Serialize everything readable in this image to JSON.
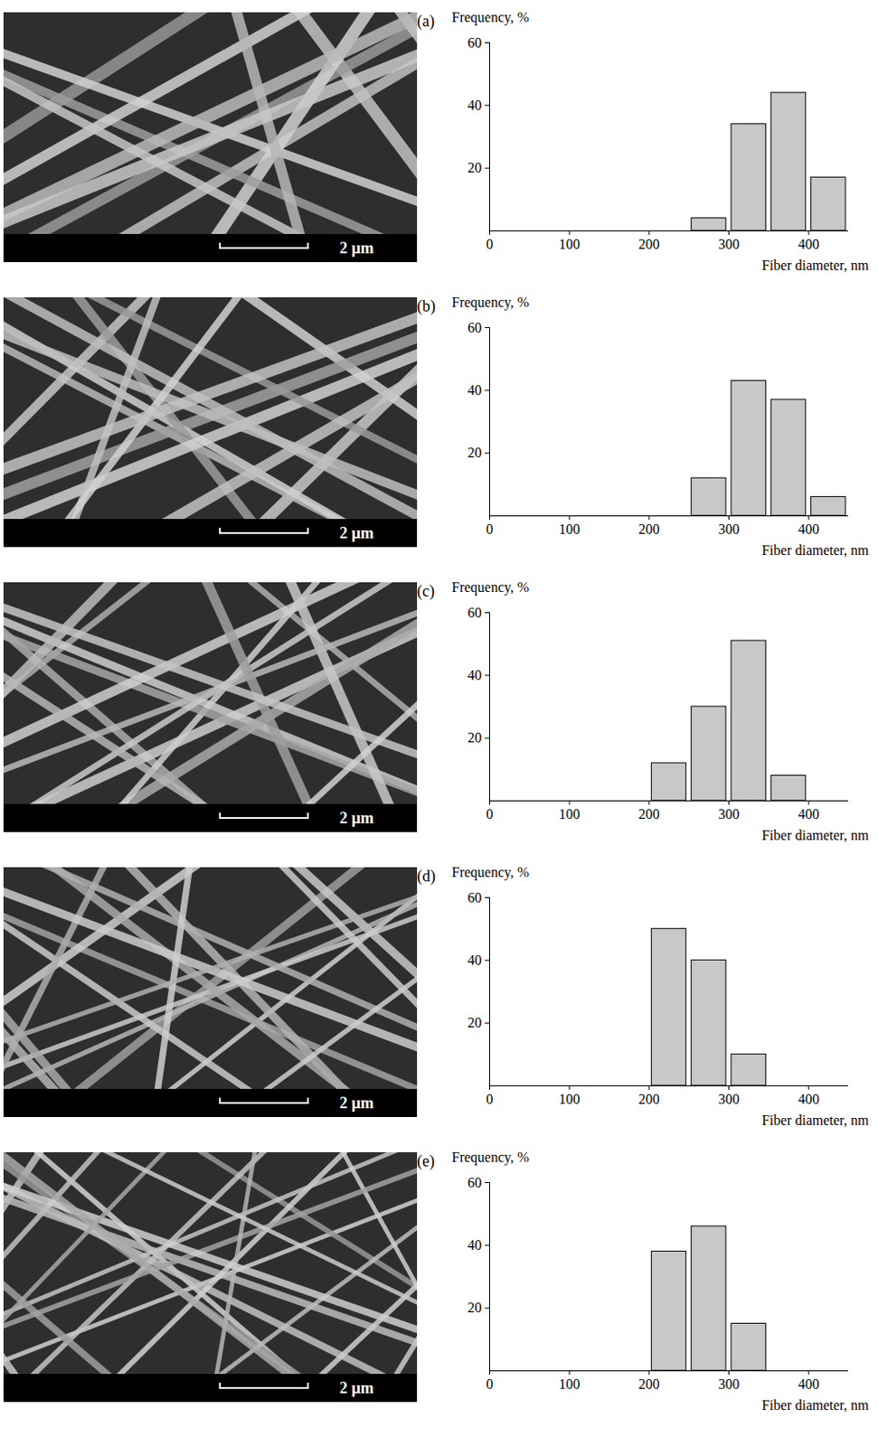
{
  "chart_data": [
    {
      "type": "histogram",
      "panel": "(a)",
      "micrograph_scale_bar": "2 µm",
      "x_label": "Fiber diameter, nm",
      "y_label": "Frequency, %",
      "bins": [
        250,
        300,
        350,
        400,
        450
      ],
      "values": [
        4,
        34,
        44,
        17
      ],
      "color": "#c8c8c8",
      "xlim": [
        0,
        450
      ],
      "xticks": [
        0,
        100,
        200,
        300,
        400
      ],
      "ylim": [
        0,
        60
      ],
      "yticks": [
        20,
        40,
        60
      ]
    },
    {
      "type": "histogram",
      "panel": "(b)",
      "micrograph_scale_bar": "2 µm",
      "x_label": "Fiber diameter, nm",
      "y_label": "Frequency, %",
      "bins": [
        250,
        300,
        350,
        400,
        450
      ],
      "values": [
        12,
        43,
        37,
        6
      ],
      "color": "#c8c8c8",
      "xlim": [
        0,
        450
      ],
      "xticks": [
        0,
        100,
        200,
        300,
        400
      ],
      "ylim": [
        0,
        60
      ],
      "yticks": [
        20,
        40,
        60
      ]
    },
    {
      "type": "histogram",
      "panel": "(c)",
      "micrograph_scale_bar": "2 µm",
      "x_label": "Fiber diameter, nm",
      "y_label": "Frequency, %",
      "bins": [
        200,
        250,
        300,
        350,
        400
      ],
      "values": [
        12,
        30,
        51,
        8
      ],
      "color": "#c8c8c8",
      "xlim": [
        0,
        450
      ],
      "xticks": [
        0,
        100,
        200,
        300,
        400
      ],
      "ylim": [
        0,
        60
      ],
      "yticks": [
        20,
        40,
        60
      ]
    },
    {
      "type": "histogram",
      "panel": "(d)",
      "micrograph_scale_bar": "2 µm",
      "x_label": "Fiber diameter, nm",
      "y_label": "Frequency, %",
      "bins": [
        200,
        250,
        300,
        350
      ],
      "values": [
        50,
        40,
        10
      ],
      "color": "#c8c8c8",
      "xlim": [
        0,
        450
      ],
      "xticks": [
        0,
        100,
        200,
        300,
        400
      ],
      "ylim": [
        0,
        60
      ],
      "yticks": [
        20,
        40,
        60
      ]
    },
    {
      "type": "histogram",
      "panel": "(e)",
      "micrograph_scale_bar": "2 µm",
      "x_label": "Fiber diameter, nm",
      "y_label": "Frequency, %",
      "bins": [
        200,
        250,
        300,
        350
      ],
      "values": [
        38,
        46,
        15
      ],
      "color": "#c8c8c8",
      "xlim": [
        0,
        450
      ],
      "xticks": [
        0,
        100,
        200,
        300,
        400
      ],
      "ylim": [
        0,
        60
      ],
      "yticks": [
        20,
        40,
        60
      ]
    }
  ]
}
